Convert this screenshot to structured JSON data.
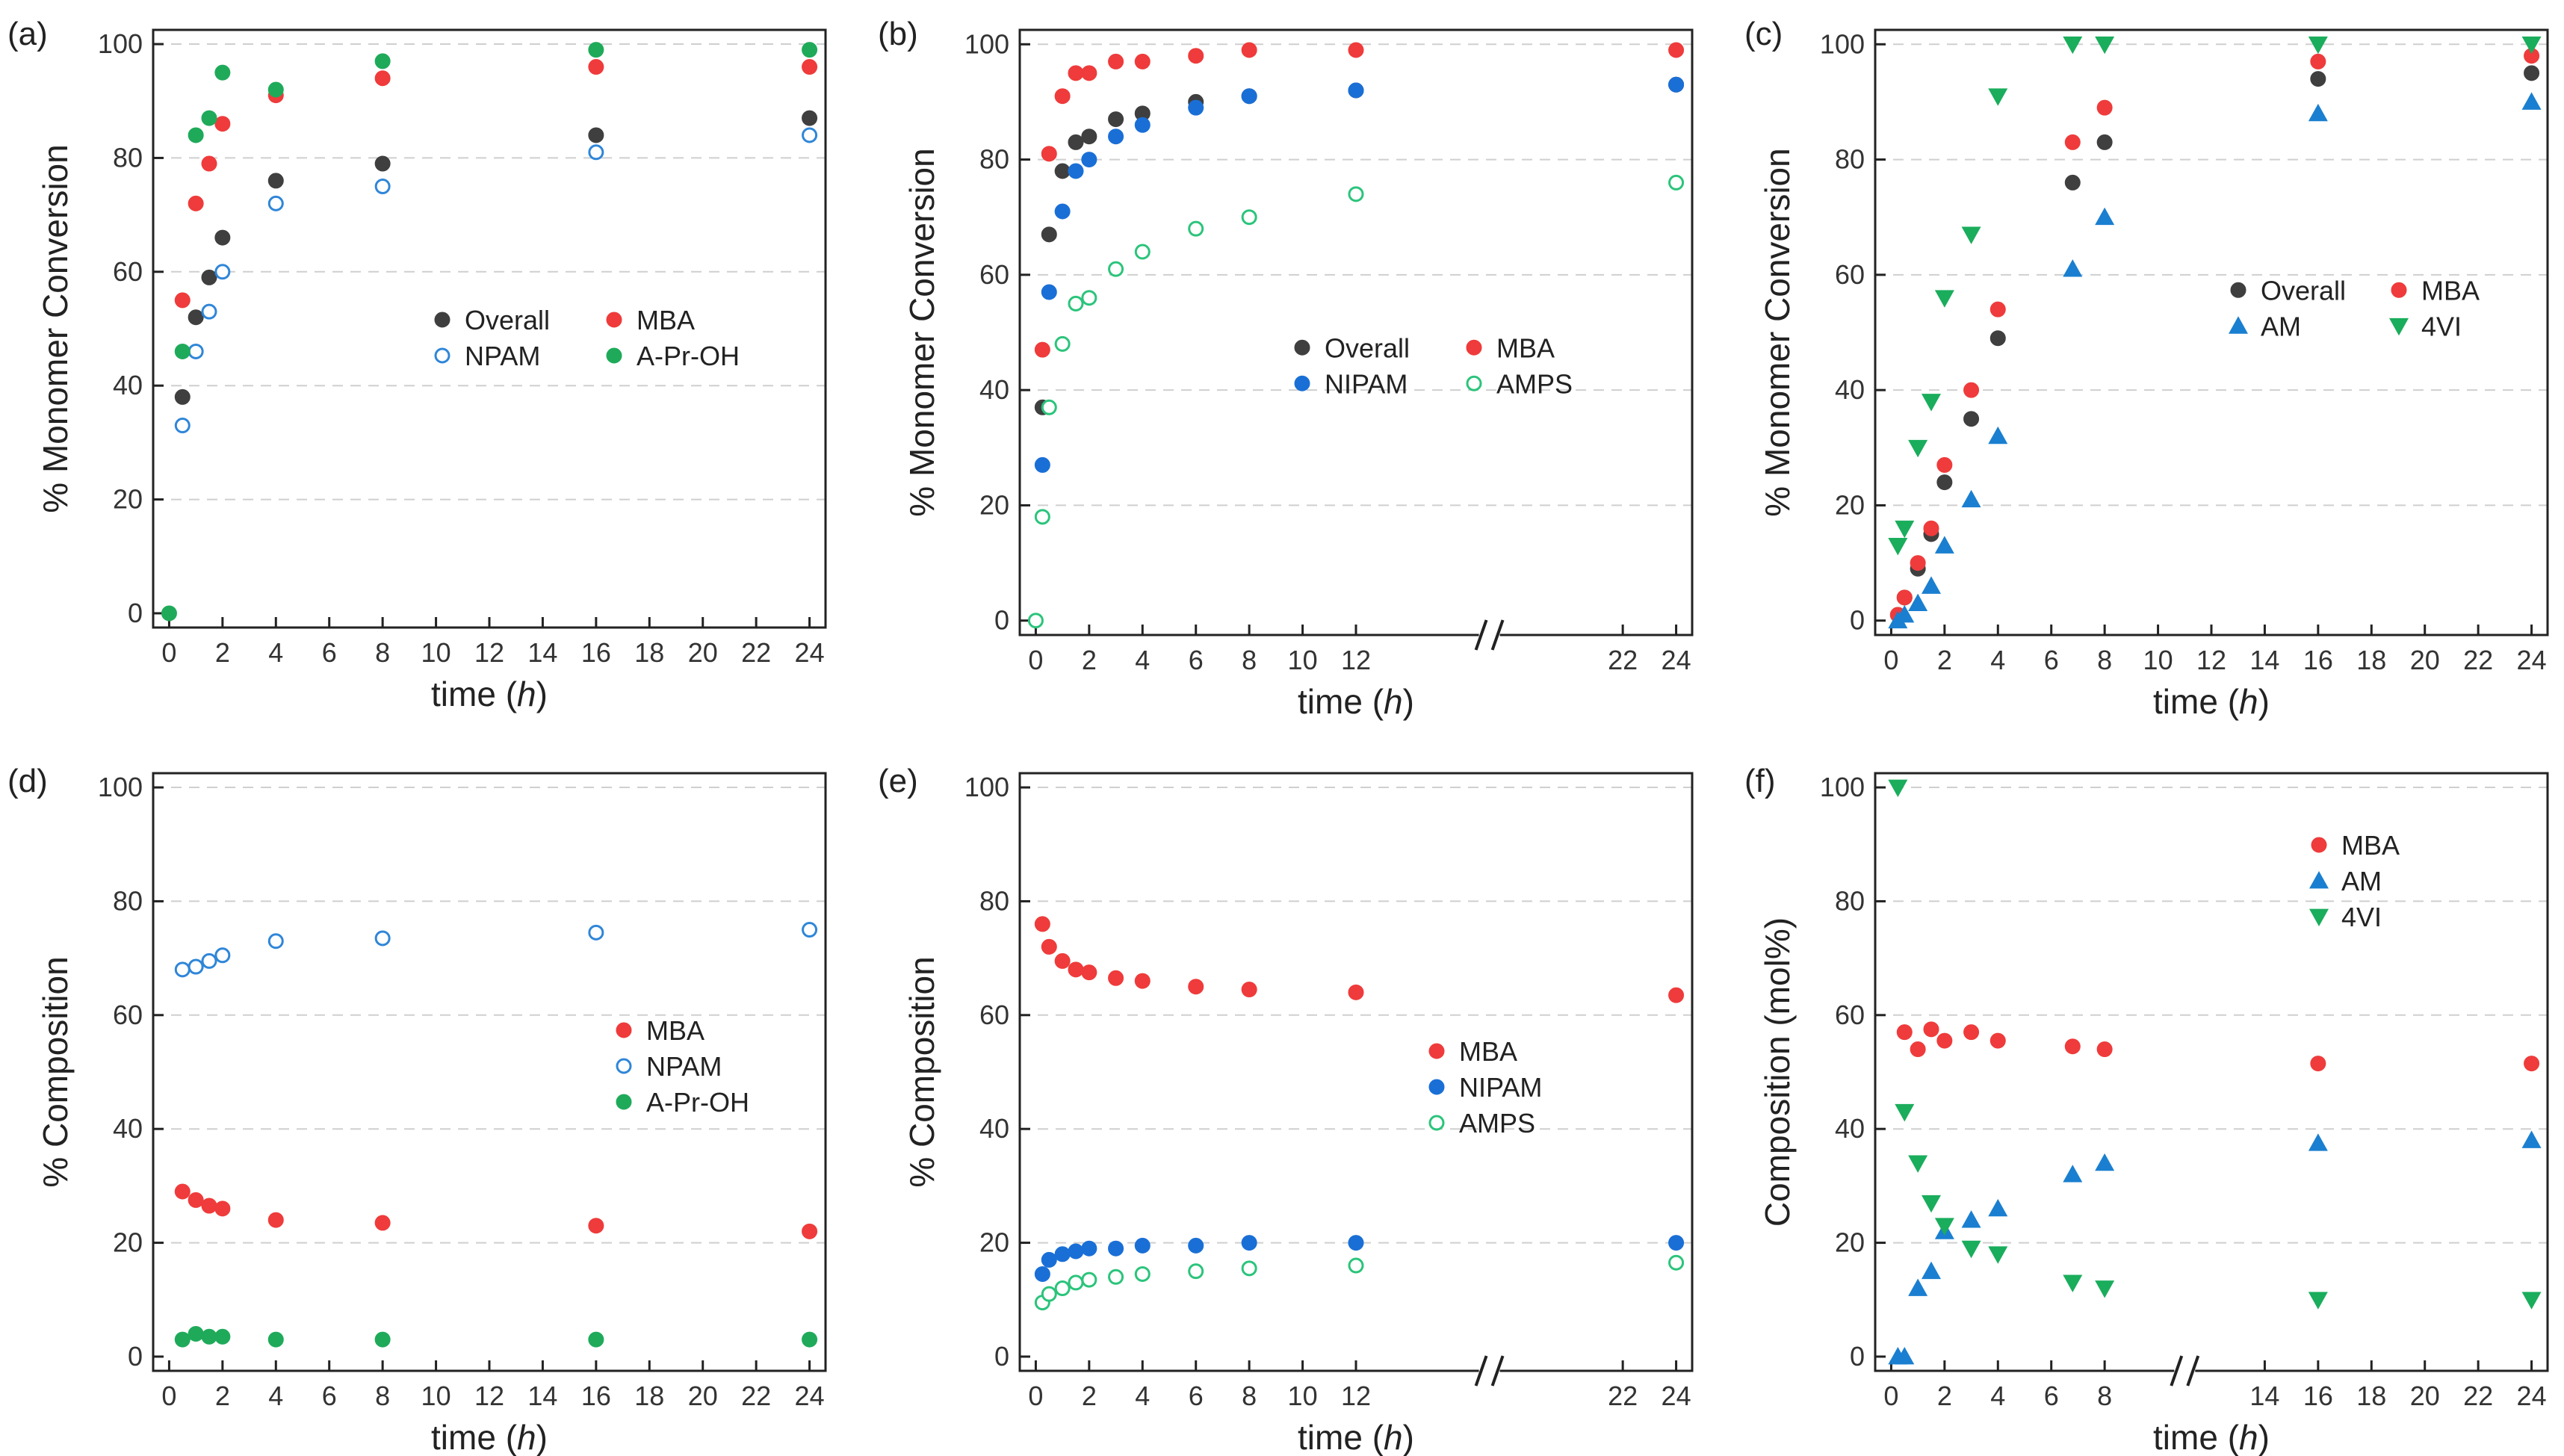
{
  "colors": {
    "overall": "#3f3f3f",
    "mba": "#ef3b3b",
    "npam": "#2f86d8",
    "nipam": "#1a6fd6",
    "apr": "#1faa5a",
    "amps": "#2bc47b",
    "am": "#1a7fd0",
    "vi": "#1aad5c"
  },
  "chart_data": [
    {
      "id": "a",
      "type": "scatter",
      "panel_label": "(a)",
      "ylabel": "% Monomer Conversion",
      "xlabel_main": "time (",
      "xlabel_italic": "h",
      "xlabel_end": ")",
      "ylim": [
        0,
        100
      ],
      "yticks": [
        0,
        20,
        40,
        60,
        80,
        100
      ],
      "xlim": [
        0,
        24
      ],
      "xticks": [
        0,
        2,
        4,
        6,
        8,
        10,
        12,
        14,
        16,
        18,
        20,
        22,
        24
      ],
      "legend": {
        "position": "center-right",
        "columns": 2
      },
      "series": [
        {
          "name": "Overall",
          "marker": "circle-filled",
          "color": "#3f3f3f",
          "x": [
            0.5,
            1,
            1.5,
            2,
            4,
            8,
            16,
            24
          ],
          "y": [
            38,
            52,
            59,
            66,
            76,
            79,
            84,
            87
          ]
        },
        {
          "name": "MBA",
          "marker": "circle-filled",
          "color": "#ef3b3b",
          "x": [
            0.5,
            1,
            1.5,
            2,
            4,
            8,
            16,
            24
          ],
          "y": [
            55,
            72,
            79,
            86,
            91,
            94,
            96,
            96
          ]
        },
        {
          "name": "NPAM",
          "marker": "circle-open",
          "color": "#2f86d8",
          "x": [
            0.5,
            1,
            1.5,
            2,
            4,
            8,
            16,
            24
          ],
          "y": [
            33,
            46,
            53,
            60,
            72,
            75,
            81,
            84
          ]
        },
        {
          "name": "A-Pr-OH",
          "marker": "circle-filled",
          "color": "#1faa5a",
          "x": [
            0,
            0.5,
            1,
            1.5,
            2,
            4,
            8,
            16,
            24
          ],
          "y": [
            0,
            46,
            84,
            87,
            95,
            92,
            97,
            99,
            99
          ]
        }
      ]
    },
    {
      "id": "b",
      "type": "scatter",
      "panel_label": "(b)",
      "ylabel": "% Monomer Conversion",
      "xlabel_main": "time (",
      "xlabel_italic": "h",
      "xlabel_end": ")",
      "ylim": [
        0,
        100
      ],
      "yticks": [
        0,
        20,
        40,
        60,
        80,
        100
      ],
      "xlim": [
        0,
        24
      ],
      "xticks": [
        0,
        2,
        4,
        6,
        8,
        10,
        12,
        22,
        24
      ],
      "axis_break": [
        12.8,
        21.2
      ],
      "legend": {
        "position": "center-right",
        "columns": 2
      },
      "series": [
        {
          "name": "Overall",
          "marker": "circle-filled",
          "color": "#3f3f3f",
          "x": [
            0.25,
            0.5,
            1,
            1.5,
            2,
            3,
            4,
            6,
            8,
            12,
            24
          ],
          "y": [
            37,
            67,
            78,
            83,
            84,
            87,
            88,
            90,
            91,
            92,
            93
          ]
        },
        {
          "name": "MBA",
          "marker": "circle-filled",
          "color": "#ef3b3b",
          "x": [
            0.25,
            0.5,
            1,
            1.5,
            2,
            3,
            4,
            6,
            8,
            12,
            24
          ],
          "y": [
            47,
            81,
            91,
            95,
            95,
            97,
            97,
            98,
            99,
            99,
            99
          ]
        },
        {
          "name": "NIPAM",
          "marker": "circle-filled",
          "color": "#1a6fd6",
          "x": [
            0.25,
            0.5,
            1,
            1.5,
            2,
            3,
            4,
            6,
            8,
            12,
            24
          ],
          "y": [
            27,
            57,
            71,
            78,
            80,
            84,
            86,
            89,
            91,
            92,
            93
          ]
        },
        {
          "name": "AMPS",
          "marker": "circle-open",
          "color": "#2bc47b",
          "x": [
            0,
            0.25,
            0.5,
            1,
            1.5,
            2,
            3,
            4,
            6,
            8,
            12,
            24
          ],
          "y": [
            0,
            18,
            37,
            48,
            55,
            56,
            61,
            64,
            68,
            70,
            74,
            76
          ]
        }
      ]
    },
    {
      "id": "c",
      "type": "scatter",
      "panel_label": "(c)",
      "ylabel": "% Monomer Conversion",
      "xlabel_main": "time (",
      "xlabel_italic": "h",
      "xlabel_end": ")",
      "ylim": [
        0,
        100
      ],
      "yticks": [
        0,
        20,
        40,
        60,
        80,
        100
      ],
      "xlim": [
        0,
        24
      ],
      "xticks": [
        0,
        2,
        4,
        6,
        8,
        10,
        12,
        14,
        16,
        18,
        20,
        22,
        24
      ],
      "legend": {
        "position": "center-right",
        "columns": 2
      },
      "series": [
        {
          "name": "Overall",
          "marker": "circle-filled",
          "color": "#3f3f3f",
          "x": [
            0.25,
            0.5,
            1,
            1.5,
            2,
            3,
            4,
            6.8,
            8,
            16,
            24
          ],
          "y": [
            1,
            4,
            9,
            15,
            24,
            35,
            49,
            76,
            83,
            94,
            95
          ]
        },
        {
          "name": "MBA",
          "marker": "circle-filled",
          "color": "#ef3b3b",
          "x": [
            0.25,
            0.5,
            1,
            1.5,
            2,
            3,
            4,
            6.8,
            8,
            16,
            24
          ],
          "y": [
            1,
            4,
            10,
            16,
            27,
            40,
            54,
            83,
            89,
            97,
            98
          ]
        },
        {
          "name": "AM",
          "marker": "triangle-up",
          "color": "#1a7fd0",
          "x": [
            0.25,
            0.5,
            1,
            1.5,
            2,
            3,
            4,
            6.8,
            8,
            16,
            24
          ],
          "y": [
            0,
            1,
            3,
            6,
            13,
            21,
            32,
            61,
            70,
            88,
            90
          ]
        },
        {
          "name": "4VI",
          "marker": "triangle-down",
          "color": "#1aad5c",
          "x": [
            0.25,
            0.5,
            1,
            1.5,
            2,
            3,
            4,
            6.8,
            8,
            16,
            24
          ],
          "y": [
            13,
            16,
            30,
            38,
            56,
            67,
            91,
            100,
            100,
            100,
            100
          ]
        }
      ]
    },
    {
      "id": "d",
      "type": "scatter",
      "panel_label": "(d)",
      "ylabel": "% Composition",
      "xlabel_main": "time (",
      "xlabel_italic": "h",
      "xlabel_end": ")",
      "ylim": [
        0,
        100
      ],
      "yticks": [
        0,
        20,
        40,
        60,
        80,
        100
      ],
      "xlim": [
        0,
        24
      ],
      "xticks": [
        0,
        2,
        4,
        6,
        8,
        10,
        12,
        14,
        16,
        18,
        20,
        22,
        24
      ],
      "legend": {
        "position": "center-right",
        "columns": 1
      },
      "series": [
        {
          "name": "MBA",
          "marker": "circle-filled",
          "color": "#ef3b3b",
          "x": [
            0.5,
            1,
            1.5,
            2,
            4,
            8,
            16,
            24
          ],
          "y": [
            29,
            27.5,
            26.5,
            26,
            24,
            23.5,
            23,
            22
          ]
        },
        {
          "name": "NPAM",
          "marker": "circle-open",
          "color": "#2f86d8",
          "x": [
            0.5,
            1,
            1.5,
            2,
            4,
            8,
            16,
            24
          ],
          "y": [
            68,
            68.5,
            69.5,
            70.5,
            73,
            73.5,
            74.5,
            75
          ]
        },
        {
          "name": "A-Pr-OH",
          "marker": "circle-filled",
          "color": "#1faa5a",
          "x": [
            0.5,
            1,
            1.5,
            2,
            4,
            8,
            16,
            24
          ],
          "y": [
            3,
            4,
            3.5,
            3.5,
            3,
            3,
            3,
            3
          ]
        }
      ]
    },
    {
      "id": "e",
      "type": "scatter",
      "panel_label": "(e)",
      "ylabel": "% Composition",
      "xlabel_main": "time (",
      "xlabel_italic": "h",
      "xlabel_end": ")",
      "ylim": [
        0,
        100
      ],
      "yticks": [
        0,
        20,
        40,
        60,
        80,
        100
      ],
      "xlim": [
        0,
        24
      ],
      "xticks": [
        0,
        2,
        4,
        6,
        8,
        10,
        12,
        22,
        24
      ],
      "axis_break": [
        12.8,
        21.2
      ],
      "legend": {
        "position": "center-right",
        "columns": 1
      },
      "series": [
        {
          "name": "MBA",
          "marker": "circle-filled",
          "color": "#ef3b3b",
          "x": [
            0.25,
            0.5,
            1,
            1.5,
            2,
            3,
            4,
            6,
            8,
            12,
            24
          ],
          "y": [
            76,
            72,
            69.5,
            68,
            67.5,
            66.5,
            66,
            65,
            64.5,
            64,
            63.5
          ]
        },
        {
          "name": "NIPAM",
          "marker": "circle-filled",
          "color": "#1a6fd6",
          "x": [
            0.25,
            0.5,
            1,
            1.5,
            2,
            3,
            4,
            6,
            8,
            12,
            24
          ],
          "y": [
            14.5,
            17,
            18,
            18.5,
            19,
            19,
            19.5,
            19.5,
            20,
            20,
            20
          ]
        },
        {
          "name": "AMPS",
          "marker": "circle-open",
          "color": "#2bc47b",
          "x": [
            0.25,
            0.5,
            1,
            1.5,
            2,
            3,
            4,
            6,
            8,
            12,
            24
          ],
          "y": [
            9.5,
            11,
            12,
            13,
            13.5,
            14,
            14.5,
            15,
            15.5,
            16,
            16.5
          ]
        }
      ]
    },
    {
      "id": "f",
      "type": "scatter",
      "panel_label": "(f)",
      "ylabel": "Composition (mol%)",
      "xlabel_main": "time (",
      "xlabel_italic": "h",
      "xlabel_end": ")",
      "ylim": [
        0,
        100
      ],
      "yticks": [
        0,
        20,
        40,
        60,
        80,
        100
      ],
      "xlim": [
        0,
        24
      ],
      "xticks": [
        0,
        2,
        4,
        6,
        8,
        14,
        16,
        18,
        20,
        22,
        24
      ],
      "axis_break": [
        9.5,
        12.5
      ],
      "legend": {
        "position": "top-right",
        "columns": 1
      },
      "series": [
        {
          "name": "MBA",
          "marker": "circle-filled",
          "color": "#ef3b3b",
          "x": [
            0.5,
            1,
            1.5,
            2,
            3,
            4,
            6.8,
            8,
            16,
            24
          ],
          "y": [
            57,
            54,
            57.5,
            55.5,
            57,
            55.5,
            54.5,
            54,
            51.5,
            51.5
          ]
        },
        {
          "name": "AM",
          "marker": "triangle-up",
          "color": "#1a7fd0",
          "x": [
            0.25,
            0.5,
            1,
            1.5,
            2,
            3,
            4,
            6.8,
            8,
            16,
            24
          ],
          "y": [
            0,
            0,
            12,
            15,
            22,
            24,
            26,
            32,
            34,
            37.5,
            38
          ]
        },
        {
          "name": "4VI",
          "marker": "triangle-down",
          "color": "#1aad5c",
          "x": [
            0.25,
            0.5,
            1,
            1.5,
            2,
            3,
            4,
            6.8,
            8,
            16,
            24
          ],
          "y": [
            100,
            43,
            34,
            27,
            23,
            19,
            18,
            13,
            12,
            10,
            10
          ]
        }
      ]
    }
  ]
}
